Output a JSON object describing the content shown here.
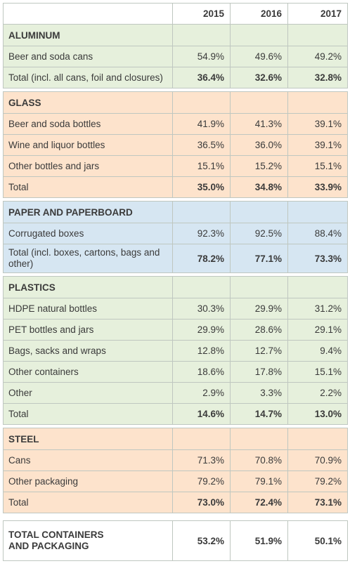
{
  "header": {
    "years": [
      "2015",
      "2016",
      "2017"
    ]
  },
  "sections": {
    "aluminum": {
      "title": "ALUMINUM",
      "rows": [
        {
          "label": "Beer and soda cans",
          "values": [
            "54.9%",
            "49.6%",
            "49.2%"
          ]
        },
        {
          "label": "Total (incl. all cans, foil and closures)",
          "values": [
            "36.4%",
            "32.6%",
            "32.8%"
          ]
        }
      ]
    },
    "glass": {
      "title": "GLASS",
      "rows": [
        {
          "label": "Beer and soda bottles",
          "values": [
            "41.9%",
            "41.3%",
            "39.1%"
          ]
        },
        {
          "label": "Wine and liquor bottles",
          "values": [
            "36.5%",
            "36.0%",
            "39.1%"
          ]
        },
        {
          "label": "Other bottles and jars",
          "values": [
            "15.1%",
            "15.2%",
            "15.1%"
          ]
        },
        {
          "label": "Total",
          "values": [
            "35.0%",
            "34.8%",
            "33.9%"
          ]
        }
      ]
    },
    "paper": {
      "title": "PAPER AND PAPERBOARD",
      "rows": [
        {
          "label": "Corrugated boxes",
          "values": [
            "92.3%",
            "92.5%",
            "88.4%"
          ]
        },
        {
          "label": "Total (incl. boxes, cartons, bags and other)",
          "values": [
            "78.2%",
            "77.1%",
            "73.3%"
          ]
        }
      ]
    },
    "plastics": {
      "title": "PLASTICS",
      "rows": [
        {
          "label": "HDPE natural bottles",
          "values": [
            "30.3%",
            "29.9%",
            "31.2%"
          ]
        },
        {
          "label": "PET bottles and jars",
          "values": [
            "29.9%",
            "28.6%",
            "29.1%"
          ]
        },
        {
          "label": "Bags, sacks and wraps",
          "values": [
            "12.8%",
            "12.7%",
            "9.4%"
          ]
        },
        {
          "label": "Other containers",
          "values": [
            "18.6%",
            "17.8%",
            "15.1%"
          ]
        },
        {
          "label": "Other",
          "values": [
            "2.9%",
            "3.3%",
            "2.2%"
          ]
        },
        {
          "label": "Total",
          "values": [
            "14.6%",
            "14.7%",
            "13.0%"
          ]
        }
      ]
    },
    "steel": {
      "title": "STEEL",
      "rows": [
        {
          "label": "Cans",
          "values": [
            "71.3%",
            "70.8%",
            "70.9%"
          ]
        },
        {
          "label": "Other packaging",
          "values": [
            "79.2%",
            "79.1%",
            "79.2%"
          ]
        },
        {
          "label": "Total",
          "values": [
            "73.0%",
            "72.4%",
            "73.1%"
          ]
        }
      ]
    }
  },
  "grand_total": {
    "label": "TOTAL CONTAINERS AND PACKAGING",
    "values": [
      "53.2%",
      "51.9%",
      "50.1%"
    ]
  },
  "colors": {
    "aluminum": "#e6f0dc",
    "glass": "#fde3cc",
    "paper": "#d6e6f2",
    "plastics": "#e6f0dc",
    "steel": "#fde3cc"
  }
}
